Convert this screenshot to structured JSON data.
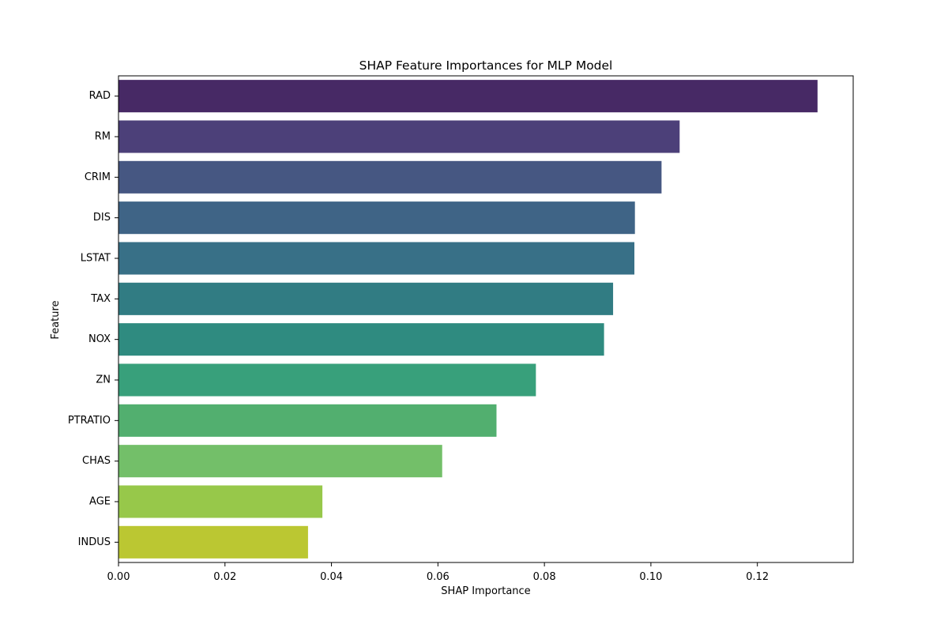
{
  "chart_data": {
    "type": "bar",
    "orientation": "horizontal",
    "title": "SHAP Feature Importances for MLP Model",
    "xlabel": "SHAP Importance",
    "ylabel": "Feature",
    "xlim": [
      0,
      0.138
    ],
    "xticks": [
      0.0,
      0.02,
      0.04,
      0.06,
      0.08,
      0.1,
      0.12
    ],
    "xtick_labels": [
      "0.00",
      "0.02",
      "0.04",
      "0.06",
      "0.08",
      "0.10",
      "0.12"
    ],
    "grid": false,
    "legend": "none",
    "categories": [
      "RAD",
      "RM",
      "CRIM",
      "DIS",
      "LSTAT",
      "TAX",
      "NOX",
      "ZN",
      "PTRATIO",
      "CHAS",
      "AGE",
      "INDUS"
    ],
    "values": [
      0.1313,
      0.1054,
      0.102,
      0.097,
      0.0969,
      0.0929,
      0.0912,
      0.0784,
      0.071,
      0.0608,
      0.0383,
      0.0356
    ],
    "colors": [
      "#472965",
      "#4c4079",
      "#465782",
      "#3f6486",
      "#387087",
      "#317c83",
      "#2f8b80",
      "#38a07b",
      "#52af6f",
      "#73bf69",
      "#97c84a",
      "#bbc732"
    ]
  }
}
